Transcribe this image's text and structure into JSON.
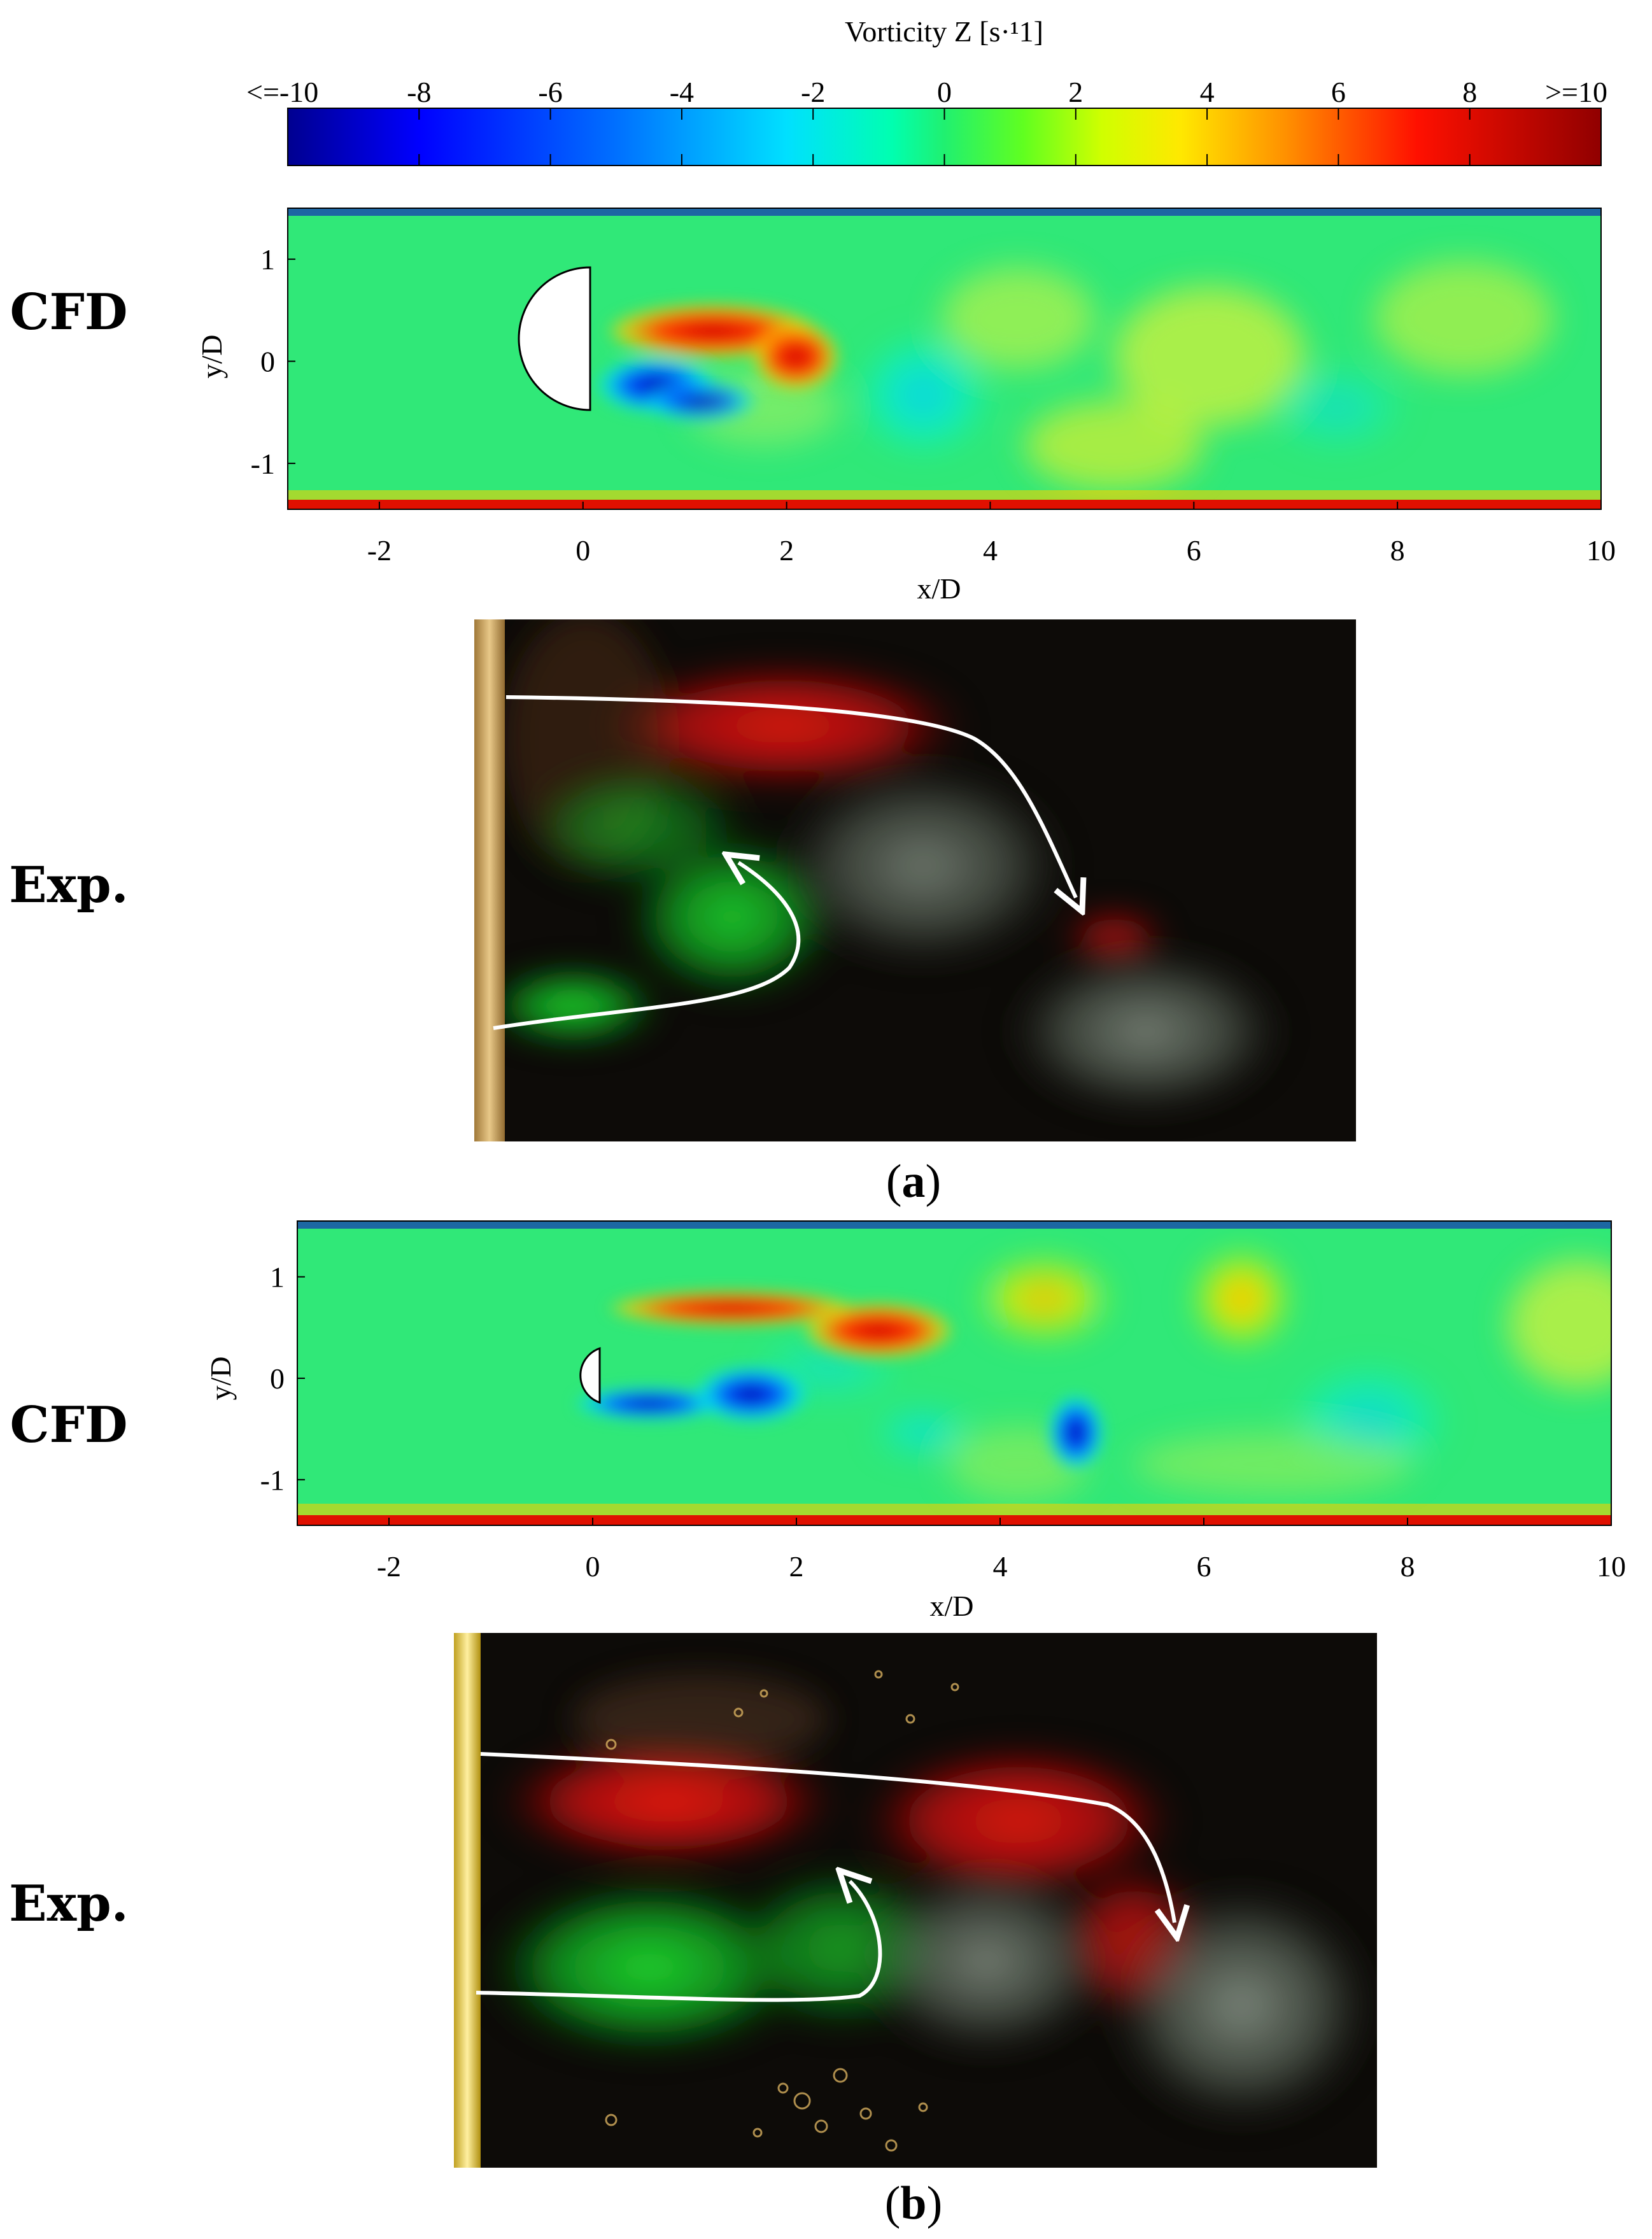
{
  "colorbar": {
    "title": "Vorticity Z [s·¹1]",
    "tick_labels": [
      "<=-10",
      "-8",
      "-6",
      "-4",
      "-2",
      "0",
      "2",
      "4",
      "6",
      "8",
      ">=10"
    ],
    "min": -10,
    "max": 10,
    "colors": [
      "#0000a0",
      "#0000ff",
      "#0060ff",
      "#00c0ff",
      "#00ffff",
      "#00ff90",
      "#40ff00",
      "#c0ff00",
      "#ffff00",
      "#ffc000",
      "#ff7000",
      "#ff0000",
      "#a00000"
    ]
  },
  "panels": [
    {
      "id": "a",
      "caption_letter": "a",
      "cfd_label": "CFD",
      "exp_label": "Exp.",
      "x_ticks": [
        "-2",
        "0",
        "2",
        "4",
        "6",
        "8",
        "10"
      ],
      "y_ticks": [
        "1",
        "0",
        "-1"
      ],
      "x_label": "x/D",
      "y_label": "y/D"
    },
    {
      "id": "b",
      "caption_letter": "b",
      "cfd_label": "CFD",
      "exp_label": "Exp.",
      "x_ticks": [
        "-2",
        "0",
        "2",
        "4",
        "6",
        "8",
        "10"
      ],
      "y_ticks": [
        "1",
        "0",
        "-1"
      ],
      "x_label": "x/D",
      "y_label": "y/D"
    }
  ],
  "colors": {
    "background_field": "#2ee676",
    "dye_red": "#e01818",
    "dye_green": "#1fd02a",
    "photo_bg": "#0c0c08",
    "arrow": "#ffffff"
  }
}
